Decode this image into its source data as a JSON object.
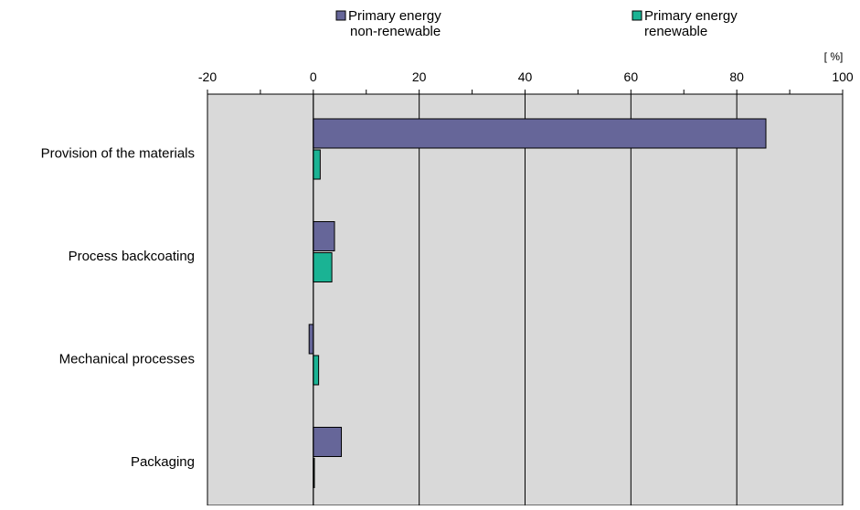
{
  "chart_data": {
    "type": "bar",
    "orientation": "horizontal",
    "unit_label": "[ %]",
    "categories": [
      "Provision of  the materials",
      "Process backcoating",
      "Mechanical processes",
      "Packaging"
    ],
    "series": [
      {
        "name_lines": [
          "Primary energy",
          "non-renewable"
        ],
        "color": "#666699",
        "values": [
          85.5,
          4.0,
          -0.8,
          5.3
        ]
      },
      {
        "name_lines": [
          "Primary energy",
          "renewable"
        ],
        "color": "#1ab394",
        "values": [
          1.3,
          3.5,
          1.0,
          0.2
        ]
      }
    ],
    "xlim": [
      -20,
      100
    ],
    "xticks": [
      -20,
      0,
      20,
      40,
      60,
      80,
      100
    ],
    "x_tick_labels": [
      "-20",
      "0",
      "20",
      "40",
      "60",
      "80",
      "100"
    ],
    "grid": true,
    "legend_position": "top",
    "plot_background": "#d9d9d9"
  }
}
